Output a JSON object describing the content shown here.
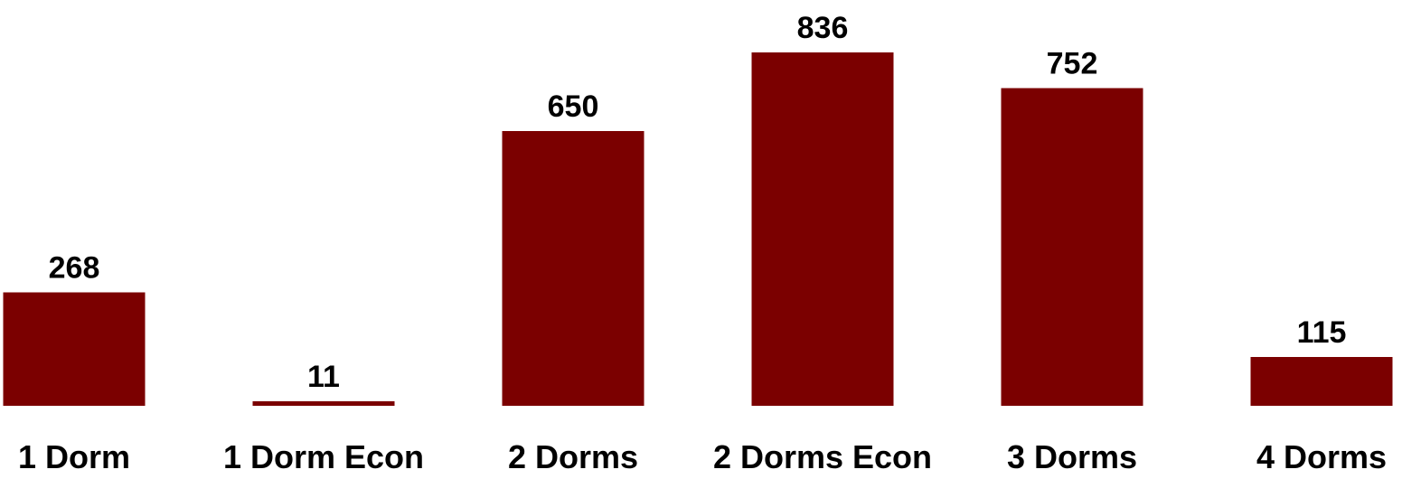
{
  "chart_data": {
    "type": "bar",
    "title": "",
    "xlabel": "",
    "ylabel": "",
    "categories": [
      "1 Dorm",
      "1 Dorm Econ",
      "2 Dorms",
      "2 Dorms Econ",
      "3 Dorms",
      "4 Dorms"
    ],
    "values": [
      268,
      11,
      650,
      836,
      752,
      115
    ],
    "ylim": [
      0,
      836
    ],
    "grid": false,
    "legend": "none",
    "data_labels": true,
    "colors": {
      "bar": "#7B0000",
      "text": "#000000",
      "background": "#FFFFFF"
    }
  }
}
